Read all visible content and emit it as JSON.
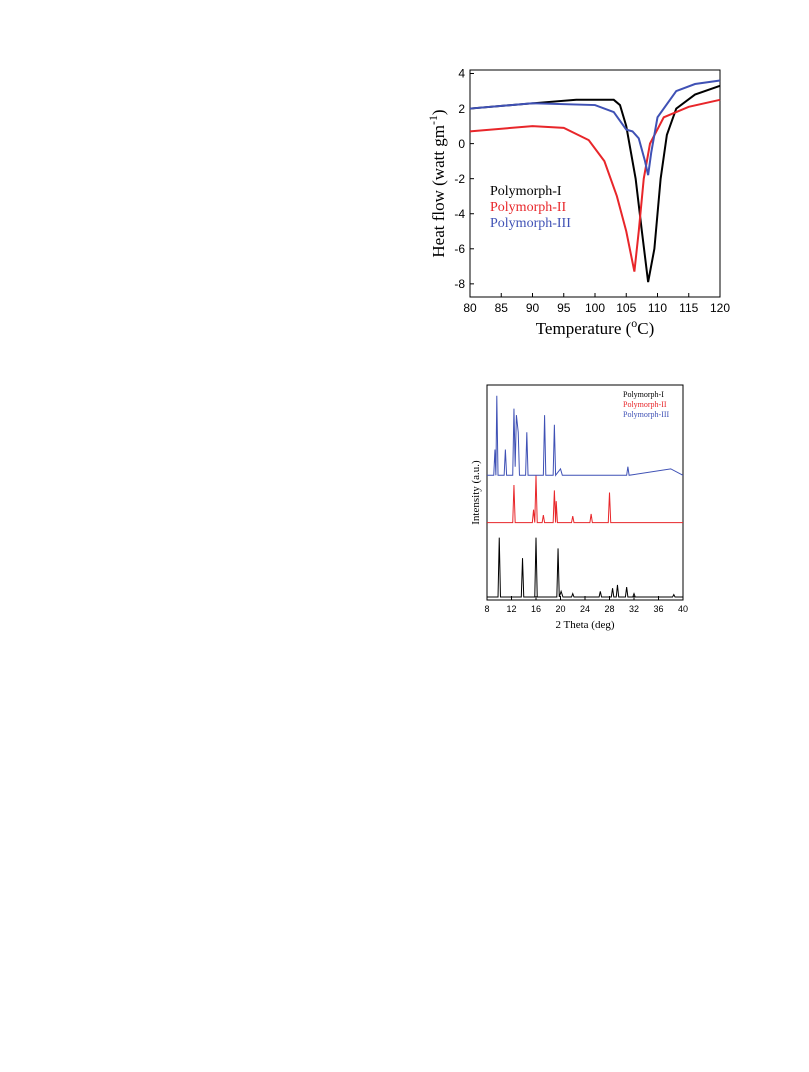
{
  "chart_data": [
    {
      "type": "line",
      "xlabel": [
        "Temperature (",
        "o",
        "C)"
      ],
      "ylabel": [
        "Heat flow (watt gm",
        "-1",
        ")"
      ],
      "xlim": [
        80,
        120
      ],
      "ylim": [
        -8.75,
        4.2
      ],
      "xticks": [
        80,
        85,
        90,
        95,
        100,
        105,
        110,
        115,
        120
      ],
      "yticks": [
        4,
        2,
        0,
        -2,
        -4,
        -6,
        -8
      ],
      "legend": "left",
      "series": [
        {
          "name": "Polymorph-I",
          "color": "#000000",
          "x": [
            80,
            90,
            97,
            103,
            104,
            105,
            106.5,
            107.5,
            108.5,
            109.5,
            110.5,
            111.5,
            113,
            116,
            120
          ],
          "values": [
            2.0,
            2.3,
            2.5,
            2.5,
            2.2,
            1.0,
            -2,
            -5,
            -7.9,
            -6,
            -2,
            0.5,
            2,
            2.8,
            3.3
          ]
        },
        {
          "name": "Polymorph-II",
          "color": "#e8262a",
          "x": [
            80,
            90,
            95,
            99,
            101.5,
            103.5,
            105,
            106.3,
            107,
            107.8,
            108.8,
            111,
            115,
            120
          ],
          "values": [
            0.7,
            1.0,
            0.9,
            0.2,
            -1,
            -3,
            -5,
            -7.3,
            -5,
            -2,
            0,
            1.5,
            2.1,
            2.5
          ]
        },
        {
          "name": "Polymorph-III",
          "color": "#3f51b5",
          "x": [
            80,
            90,
            100,
            103,
            105,
            106,
            107,
            108,
            108.5,
            109,
            110,
            113,
            116,
            120
          ],
          "values": [
            2.0,
            2.3,
            2.2,
            1.8,
            0.8,
            0.7,
            0.3,
            -1.0,
            -1.8,
            -0.5,
            1.5,
            3.0,
            3.4,
            3.6
          ]
        }
      ]
    },
    {
      "type": "line",
      "xlabel": "2 Theta (deg)",
      "ylabel": "Intensity (a.u.)",
      "xlim": [
        8,
        40
      ],
      "ylim": [
        0,
        100
      ],
      "xticks": [
        8,
        12,
        16,
        20,
        24,
        28,
        32,
        36,
        40
      ],
      "legend": "upper right",
      "series": [
        {
          "name": "Polymorph-I",
          "color": "#000000",
          "x": [
            8,
            9.8,
            10,
            10.2,
            13.6,
            13.8,
            14,
            15.8,
            16,
            16.2,
            19.4,
            19.6,
            19.8,
            20.1,
            20.4,
            21.8,
            22,
            22.2,
            26.3,
            26.5,
            26.7,
            28.3,
            28.5,
            28.7,
            29.1,
            29.3,
            29.5,
            30.6,
            30.8,
            31,
            31.8,
            32,
            32.2,
            38.3,
            38.5,
            38.7,
            40
          ],
          "values": [
            1.4,
            1.4,
            29,
            1.4,
            1.4,
            19.5,
            1.4,
            1.4,
            29,
            1.4,
            1.4,
            24,
            1.4,
            4,
            1.4,
            1.4,
            3,
            1.4,
            1.4,
            4,
            1.4,
            1.4,
            5.5,
            1.4,
            1.4,
            7,
            1.4,
            1.4,
            6,
            1.4,
            1.4,
            3,
            1.4,
            1.4,
            2.5,
            1.4,
            1.4
          ]
        },
        {
          "name": "Polymorph-II",
          "color": "#e8262a",
          "x": [
            8,
            12.2,
            12.4,
            12.6,
            15.4,
            15.6,
            15.8,
            16,
            16.2,
            17,
            17.2,
            17.4,
            18.8,
            19,
            19.2,
            19.3,
            19.5,
            21.8,
            22,
            22.2,
            24.8,
            25,
            25.2,
            27.8,
            28,
            28.2,
            40
          ],
          "values": [
            36,
            36,
            53.5,
            36,
            36,
            42,
            36,
            58,
            36,
            36,
            39.5,
            36,
            36,
            51,
            36,
            46,
            36,
            36,
            39,
            36,
            36,
            40,
            36,
            36,
            50,
            36,
            36
          ]
        },
        {
          "name": "Polymorph-III",
          "color": "#3f51b5",
          "x": [
            8,
            9.1,
            9.3,
            9.45,
            9.6,
            9.8,
            10.8,
            11,
            11.2,
            12.2,
            12.4,
            12.6,
            12.8,
            13.1,
            13.3,
            14.3,
            14.5,
            14.7,
            17.2,
            17.4,
            17.6,
            18.8,
            19,
            19.2,
            20,
            20.3,
            30.8,
            31,
            31.2,
            38,
            40
          ],
          "values": [
            58,
            58,
            70,
            58,
            95,
            58,
            58,
            70,
            58,
            58,
            89,
            62,
            86,
            78,
            58,
            58,
            78,
            58,
            58,
            86,
            58,
            58,
            81.5,
            58,
            61,
            58,
            58,
            62,
            58,
            61,
            58
          ]
        }
      ]
    }
  ]
}
